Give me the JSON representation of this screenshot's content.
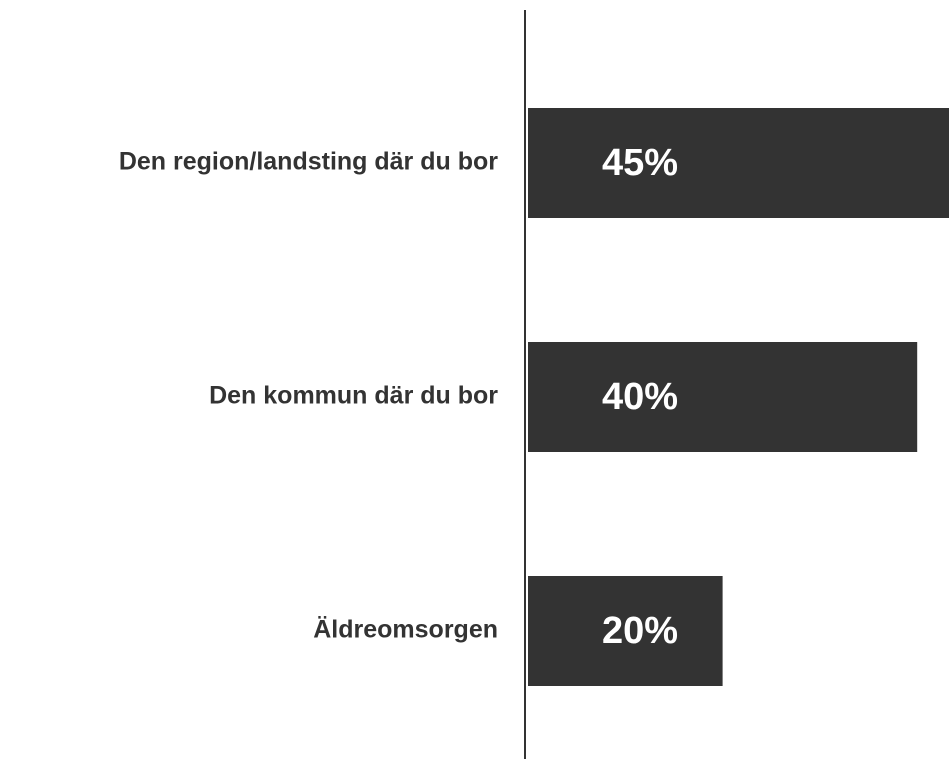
{
  "chart_data": {
    "type": "bar",
    "orientation": "horizontal",
    "categories": [
      "Den region/landsting där du bor",
      "Den kommun där du bor",
      "Äldreomsorgen"
    ],
    "values": [
      45,
      40,
      20
    ],
    "value_labels": [
      "45%",
      "40%",
      "20%"
    ],
    "color": "#333333"
  }
}
